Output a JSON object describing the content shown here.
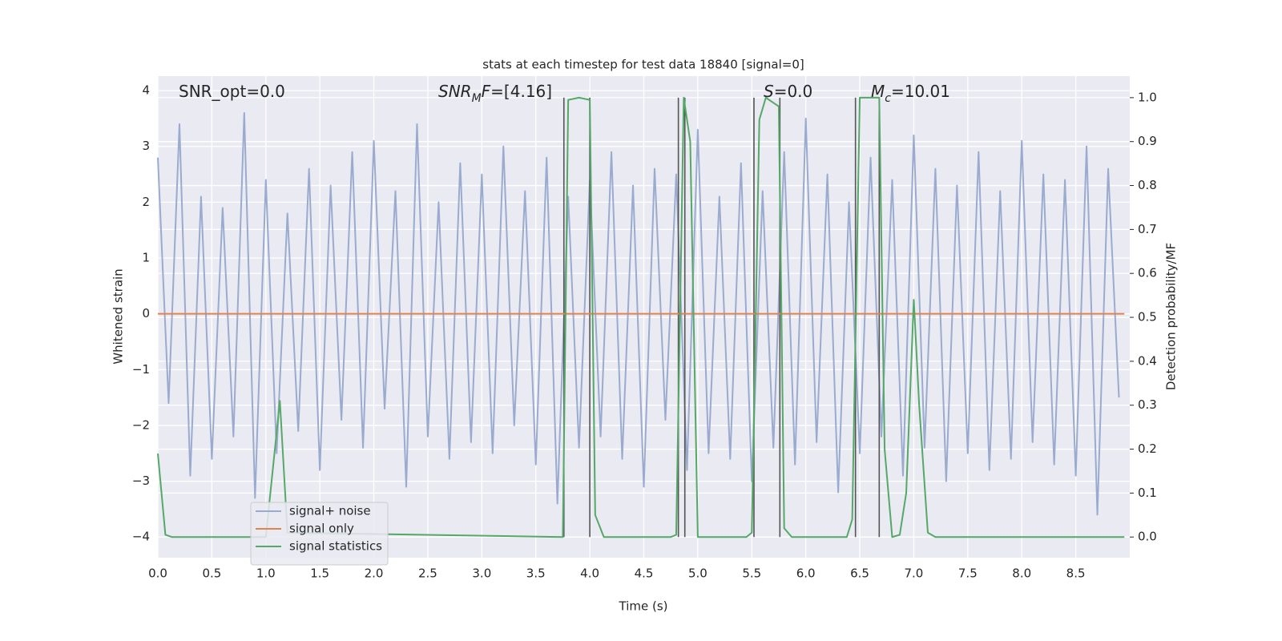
{
  "chart_data": {
    "type": "line",
    "title": "stats at each timestep for test data 18840 [signal=0]",
    "x_label": "Time (s)",
    "y_label": "Whitened strain",
    "y2_label": "Detection probability/MF",
    "xlim": [
      0,
      9.0
    ],
    "ylim": [
      -4.37,
      4.26
    ],
    "y2lim": [
      -0.047,
      1.049
    ],
    "xticks": [
      {
        "value": 0,
        "label": "0.0"
      },
      0.5,
      {
        "value": 1,
        "label": "1.0"
      },
      1.5,
      {
        "value": 2,
        "label": "2.0"
      },
      2.5,
      {
        "value": 3,
        "label": "3.0"
      },
      3.5,
      {
        "value": 4,
        "label": "4.0"
      },
      4.5,
      {
        "value": 5,
        "label": "5.0"
      },
      5.5,
      {
        "value": 6,
        "label": "6.0"
      },
      6.5,
      {
        "value": 7,
        "label": "7.0"
      },
      7.5,
      {
        "value": 8,
        "label": "8.0"
      },
      8.5
    ],
    "yticks": [
      {
        "value": -4,
        "label": "−4"
      },
      {
        "value": -3,
        "label": "−3"
      },
      {
        "value": -2,
        "label": "−2"
      },
      {
        "value": -1,
        "label": "−1"
      },
      0,
      1,
      2,
      3,
      4
    ],
    "y2ticks": [
      {
        "value": 0,
        "label": "0.0"
      },
      0.1,
      0.2,
      0.3,
      0.4,
      0.5,
      0.6,
      0.7,
      0.8,
      0.9,
      {
        "value": 1,
        "label": "1.0"
      }
    ],
    "grid": true,
    "legend": "lower left",
    "series": [
      {
        "name": "signal+ noise",
        "color": "#9aabcf",
        "x": [
          0.0,
          0.1,
          0.2,
          0.3,
          0.4,
          0.5,
          0.6,
          0.7,
          0.8,
          0.9,
          1.0,
          1.1,
          1.2,
          1.3,
          1.4,
          1.5,
          1.6,
          1.7,
          1.8,
          1.9,
          2.0,
          2.1,
          2.2,
          2.3,
          2.4,
          2.5,
          2.6,
          2.7,
          2.8,
          2.9,
          3.0,
          3.1,
          3.2,
          3.3,
          3.4,
          3.5,
          3.6,
          3.7,
          3.8,
          3.9,
          4.0,
          4.1,
          4.2,
          4.3,
          4.4,
          4.5,
          4.6,
          4.7,
          4.8,
          4.9,
          5.0,
          5.1,
          5.2,
          5.3,
          5.4,
          5.5,
          5.6,
          5.7,
          5.8,
          5.9,
          6.0,
          6.1,
          6.2,
          6.3,
          6.4,
          6.5,
          6.6,
          6.7,
          6.8,
          6.9,
          7.0,
          7.1,
          7.2,
          7.3,
          7.4,
          7.5,
          7.6,
          7.7,
          7.8,
          7.9,
          8.0,
          8.1,
          8.2,
          8.3,
          8.4,
          8.5,
          8.6,
          8.7,
          8.8,
          8.9
        ],
        "values": [
          2.8,
          -1.6,
          3.4,
          -2.9,
          2.1,
          -2.6,
          1.9,
          -2.2,
          3.6,
          -3.3,
          2.4,
          -2.5,
          1.8,
          -2.1,
          2.6,
          -2.8,
          2.3,
          -1.9,
          2.9,
          -2.4,
          3.1,
          -1.7,
          2.2,
          -3.1,
          3.4,
          -2.2,
          2.0,
          -2.6,
          2.7,
          -2.3,
          2.5,
          -2.5,
          3.0,
          -2.0,
          2.2,
          -2.7,
          2.8,
          -3.4,
          2.1,
          -2.4,
          2.4,
          -2.2,
          2.9,
          -2.6,
          2.3,
          -3.1,
          2.6,
          -1.9,
          2.5,
          -2.8,
          3.3,
          -2.5,
          2.1,
          -2.6,
          2.7,
          -3.0,
          2.2,
          -2.4,
          2.9,
          -2.7,
          3.5,
          -2.3,
          2.5,
          -3.2,
          2.0,
          -2.5,
          2.8,
          -2.2,
          2.4,
          -2.9,
          3.2,
          -2.4,
          2.6,
          -3.0,
          2.3,
          -2.5,
          2.9,
          -2.8,
          2.2,
          -2.6,
          3.1,
          -2.3,
          2.5,
          -2.7,
          2.4,
          -2.9,
          3.0,
          -3.6,
          2.6,
          -1.5
        ]
      },
      {
        "name": "signal only",
        "color": "#dd8452",
        "x": [
          0,
          8.95
        ],
        "values": [
          0,
          0
        ]
      },
      {
        "name": "signal statistics",
        "color": "#55a868",
        "axis": "y2",
        "x": [
          0,
          0.07,
          0.13,
          1.0,
          1.13,
          1.2,
          3.75,
          3.8,
          3.9,
          4.0,
          4.05,
          4.13,
          4.75,
          4.8,
          4.87,
          4.93,
          5.0,
          5.45,
          5.5,
          5.57,
          5.63,
          5.75,
          5.8,
          5.87,
          6.38,
          6.43,
          6.5,
          6.68,
          6.73,
          6.8,
          6.87,
          6.93,
          7.0,
          7.05,
          7.13,
          7.2,
          8.95
        ],
        "values": [
          0.19,
          0.005,
          0,
          0,
          0.31,
          0.01,
          0,
          0.995,
          1.0,
          0.995,
          0.05,
          0,
          0,
          0.005,
          1.0,
          0.9,
          0,
          0,
          0.01,
          0.95,
          1.0,
          0.98,
          0.02,
          0,
          0,
          0.04,
          1.0,
          1.0,
          0.2,
          0,
          0.005,
          0.1,
          0.54,
          0.3,
          0.01,
          0,
          0
        ]
      }
    ],
    "vlines": {
      "x": [
        3.76,
        4.0,
        4.82,
        4.88,
        5.52,
        5.76,
        6.46,
        6.68
      ],
      "ymin": 0,
      "ymax": 1.0,
      "axis": "y2",
      "color": "#555555"
    },
    "annotations": [
      {
        "parts": [
          {
            "text": "SNR_opt=0.0",
            "style": "normal"
          }
        ]
      },
      {
        "parts": [
          {
            "text": "SNR",
            "style": "italic"
          },
          {
            "text": "M",
            "style": "sub"
          },
          {
            "text": "F",
            "style": "italic"
          },
          {
            "text": "=[4.16]",
            "style": "normal"
          }
        ]
      },
      {
        "parts": [
          {
            "text": "S",
            "style": "italic"
          },
          {
            "text": "=0.0",
            "style": "normal"
          }
        ]
      },
      {
        "parts": [
          {
            "text": "M",
            "style": "italic"
          },
          {
            "text": "c",
            "style": "sub"
          },
          {
            "text": "=10.01",
            "style": "normal"
          }
        ]
      }
    ]
  }
}
